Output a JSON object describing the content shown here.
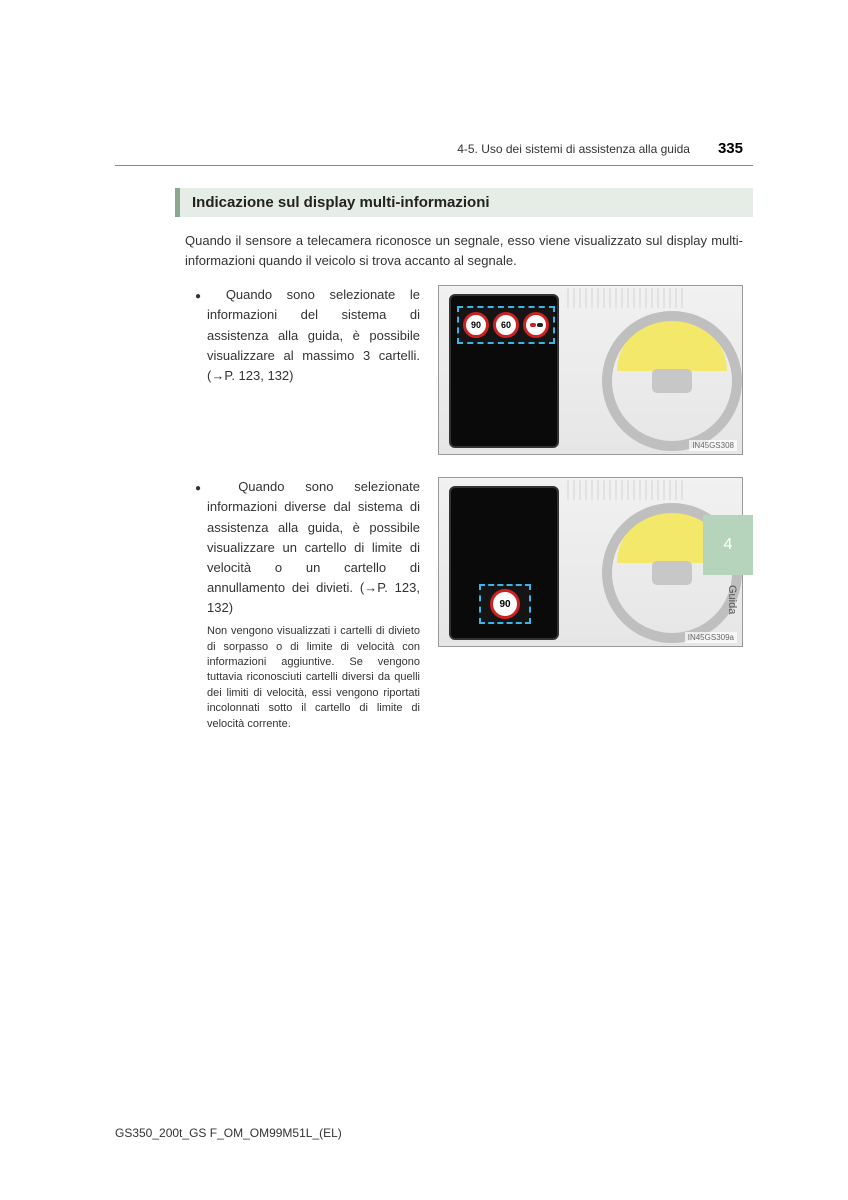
{
  "header": {
    "breadcrumb": "4-5. Uso dei sistemi di assistenza alla guida",
    "page_number": "335"
  },
  "section_heading": "Indicazione sul display multi-informazioni",
  "intro": "Quando il sensore a telecamera riconosce un segnale, esso viene visualizzato sul display multi-informazioni quando il veicolo si trova accanto al segnale.",
  "items": [
    {
      "text": "Quando sono selezionate le informazioni del sistema di assistenza alla guida, è possibile visualizzare al massimo 3 cartelli. (→P. 123, 132)",
      "note": "",
      "figure": {
        "mode": "top",
        "signs": [
          "90",
          "60"
        ],
        "label": "IN45GS308"
      }
    },
    {
      "text": "Quando sono selezionate informazioni diverse dal sistema di assistenza alla guida, è possibile visualizzare un cartello di limite di velocità o un cartello di annullamento dei divieti. (→P. 123, 132)",
      "note": "Non vengono visualizzati i cartelli di divieto di sorpasso o di limite di velocità con informazioni aggiuntive. Se vengono tuttavia riconosciuti cartelli diversi da quelli dei limiti di velocità, essi vengono riportati incolonnati sotto il cartello di limite di velocità corrente.",
      "figure": {
        "mode": "bottom",
        "signs": [
          "90"
        ],
        "label": "IN45GS309a"
      }
    }
  ],
  "side_tab": {
    "number": "4",
    "label": "Guida"
  },
  "footer": "GS350_200t_GS F_OM_OM99M51L_(EL)",
  "colors": {
    "heading_bg": "#e6ede6",
    "heading_border": "#8aa890",
    "tab_bg": "#b6d4bc",
    "dash_border": "#3bb5e8",
    "sign_ring": "#cc2222",
    "wheel_fill": "#f3e86a"
  }
}
